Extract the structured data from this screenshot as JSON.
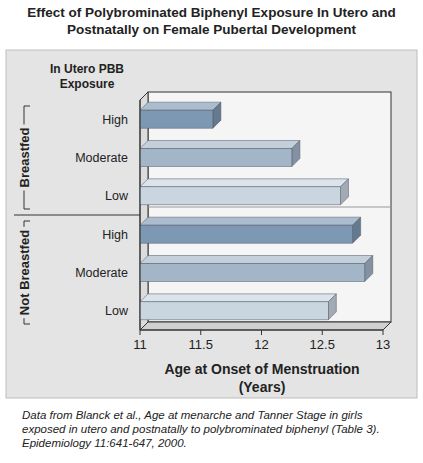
{
  "chart_data": {
    "type": "bar",
    "orientation": "horizontal",
    "title": "Effect of Polybrominated Biphenyl Exposure In Utero and Postnatally on Female Pubertal Development",
    "category_axis_title": "In Utero PBB Exposure",
    "x_label": "Age at Onset of Menstruation (Years)",
    "caption": "Data from Blanck et al., Age at menarche and Tanner Stage in girls exposed in utero and postnatally to polybrominated biphenyl (Table 3). Epidemiology 11:641-647, 2000.",
    "categories": [
      "High",
      "Moderate",
      "Low"
    ],
    "series": [
      {
        "name": "Breastfed",
        "values": [
          11.6,
          12.25,
          12.65
        ],
        "colors": [
          "#7d98b3",
          "#a3b6c8",
          "#c9d6e0"
        ]
      },
      {
        "name": "Not Breastfed",
        "values": [
          12.75,
          12.85,
          12.55
        ],
        "colors": [
          "#7d98b3",
          "#a3b6c8",
          "#c9d6e0"
        ]
      }
    ],
    "xlim": [
      11,
      13
    ],
    "xticks": [
      11,
      11.5,
      12,
      12.5,
      13
    ],
    "grid": false
  }
}
